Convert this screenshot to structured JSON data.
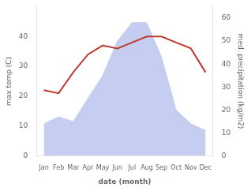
{
  "chart_data": {
    "type": "line",
    "categories": [
      "Jan",
      "Feb",
      "Mar",
      "Apr",
      "May",
      "Jun",
      "Jul",
      "Aug",
      "Sep",
      "Oct",
      "Nov",
      "Dec"
    ],
    "series": [
      {
        "type": "line",
        "color": "#c0392b",
        "values": [
          22,
          21,
          28,
          34,
          37,
          36,
          38,
          40,
          40,
          38,
          36,
          28
        ]
      },
      {
        "type": "area",
        "color": "#c5cef0",
        "axis": "y2",
        "values": [
          14,
          17,
          15,
          25,
          35,
          50,
          58,
          58,
          43,
          20,
          14,
          11
        ]
      }
    ],
    "xlabel": "date (month)",
    "ylabel": "max temp (C)",
    "y2label": "med. precipitation (kg/m2)",
    "ylim": [
      0,
      50
    ],
    "yticks": [
      0,
      10,
      20,
      30,
      40
    ],
    "y2lim": [
      0,
      65
    ],
    "y2ticks": [
      0,
      10,
      20,
      30,
      40,
      50,
      60
    ],
    "grid": false
  }
}
